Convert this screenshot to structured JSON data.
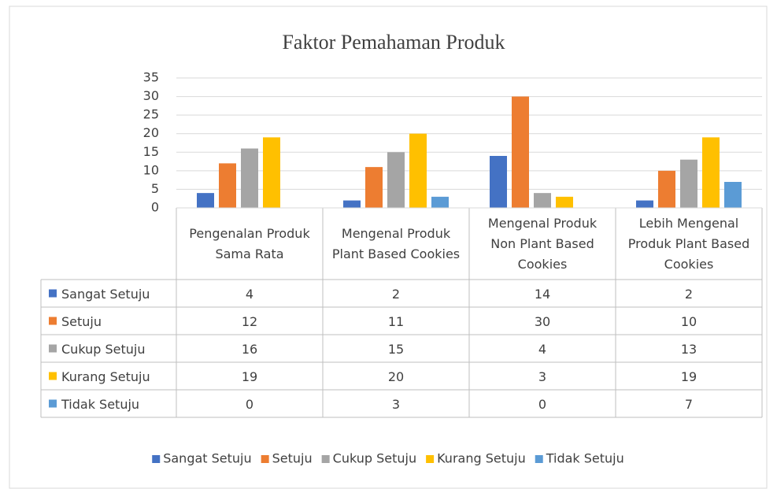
{
  "chart_data": {
    "type": "bar",
    "title": "Faktor Pemahaman Produk",
    "categories": [
      "Pengenalan Produk Sama Rata",
      "Mengenal Produk Plant Based Cookies",
      "Mengenal Produk Non Plant Based Cookies",
      "Lebih Mengenal Produk Plant Based Cookies"
    ],
    "series": [
      {
        "name": "Sangat Setuju",
        "color": "#4472c4",
        "values": [
          4,
          2,
          14,
          2
        ]
      },
      {
        "name": "Setuju",
        "color": "#ed7d31",
        "values": [
          12,
          11,
          30,
          10
        ]
      },
      {
        "name": "Cukup Setuju",
        "color": "#a5a5a5",
        "values": [
          16,
          15,
          4,
          13
        ]
      },
      {
        "name": "Kurang Setuju",
        "color": "#ffc000",
        "values": [
          19,
          20,
          3,
          19
        ]
      },
      {
        "name": "Tidak Setuju",
        "color": "#5b9bd5",
        "values": [
          0,
          3,
          0,
          7
        ]
      }
    ],
    "ylim": [
      0,
      35
    ],
    "yticks": [
      0,
      5,
      10,
      15,
      20,
      25,
      30,
      35
    ],
    "grid": true,
    "legend": "bottom",
    "data_table": true
  }
}
